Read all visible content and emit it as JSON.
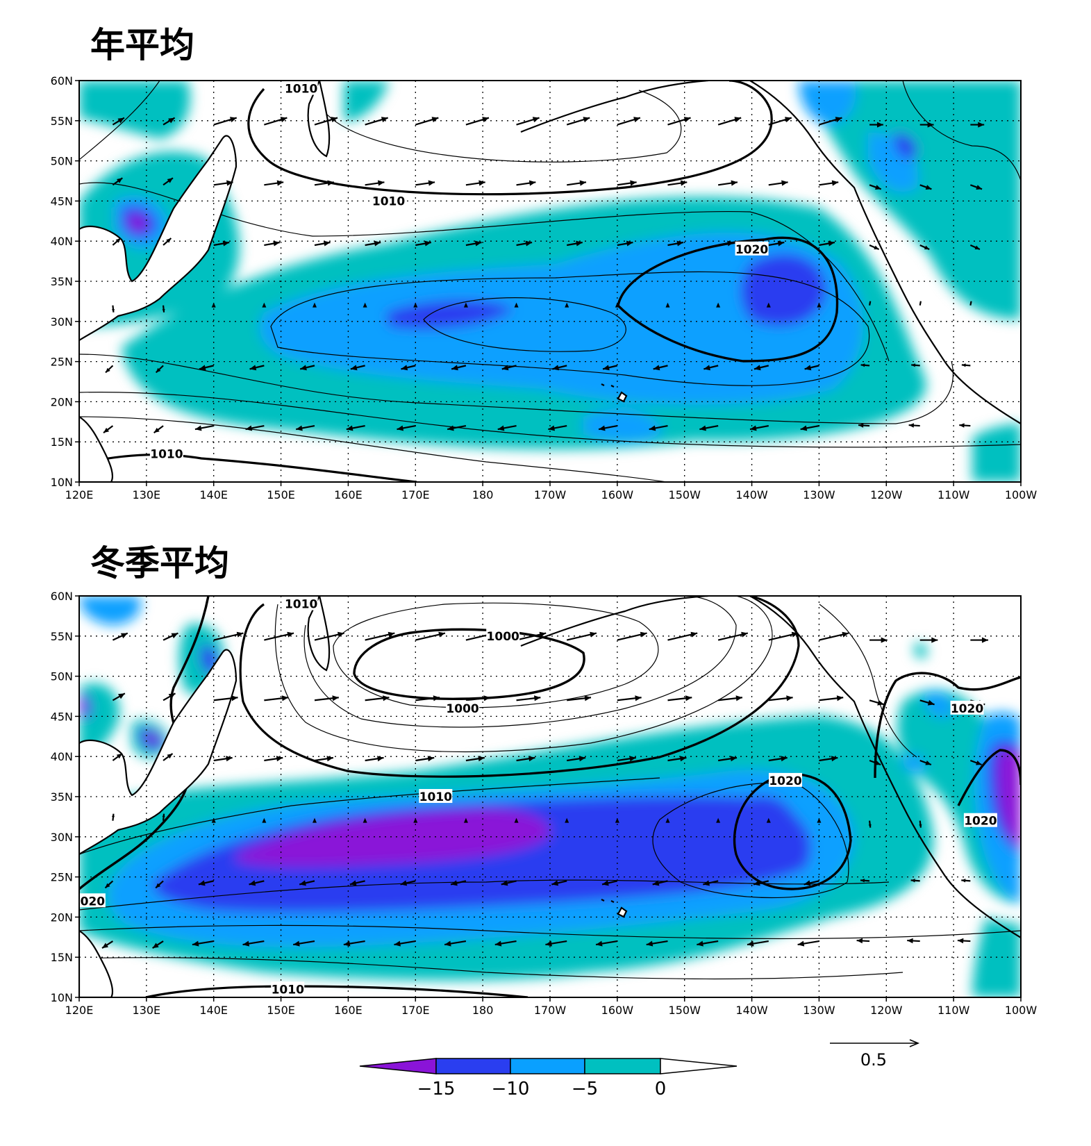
{
  "colors": {
    "c_lt_m15": "#8a14d8",
    "c_m15_m10": "#2a3ef0",
    "c_m10_m5": "#0aa0ff",
    "c_m5_0": "#00c0c0",
    "c_gt_0": "#ffffff",
    "land": "#ffffff",
    "contour": "#000000"
  },
  "icons": [
    "ref-vector-arrow-icon",
    "wind-arrow-icon"
  ],
  "colorbar": {
    "ticks": [
      "−15",
      "−10",
      "−5",
      "0"
    ]
  },
  "reference_vector": {
    "label": "0.5",
    "value": 0.5
  },
  "axes": {
    "lon_ticks": [
      "120E",
      "130E",
      "140E",
      "150E",
      "160E",
      "170E",
      "180",
      "170W",
      "160W",
      "150W",
      "140W",
      "130W",
      "120W",
      "110W",
      "100W"
    ],
    "lat_ticks": [
      "10N",
      "15N",
      "20N",
      "25N",
      "30N",
      "35N",
      "40N",
      "45N",
      "50N",
      "55N",
      "60N"
    ],
    "lon_range_deg_east": [
      120,
      260
    ],
    "lat_range_deg": [
      10,
      60
    ]
  },
  "panels": [
    {
      "title": "年平均",
      "contour_labels": [
        {
          "text": "1010",
          "lon": 153,
          "lat": 59
        },
        {
          "text": "1010",
          "lon": 166,
          "lat": 45
        },
        {
          "text": "1020",
          "lon": 220,
          "lat": 39
        },
        {
          "text": "1010",
          "lon": 133,
          "lat": 13.5
        }
      ]
    },
    {
      "title": "冬季平均",
      "contour_labels": [
        {
          "text": "1010",
          "lon": 153,
          "lat": 59
        },
        {
          "text": "1000",
          "lon": 183,
          "lat": 55
        },
        {
          "text": "1000",
          "lon": 177,
          "lat": 46
        },
        {
          "text": "1010",
          "lon": 173,
          "lat": 35
        },
        {
          "text": "1020",
          "lon": 225,
          "lat": 37
        },
        {
          "text": "1020",
          "lon": 252,
          "lat": 46
        },
        {
          "text": "1020",
          "lon": 254,
          "lat": 32
        },
        {
          "text": "020",
          "lon": 122,
          "lat": 22
        },
        {
          "text": "1010",
          "lon": 151,
          "lat": 11
        }
      ]
    }
  ]
}
